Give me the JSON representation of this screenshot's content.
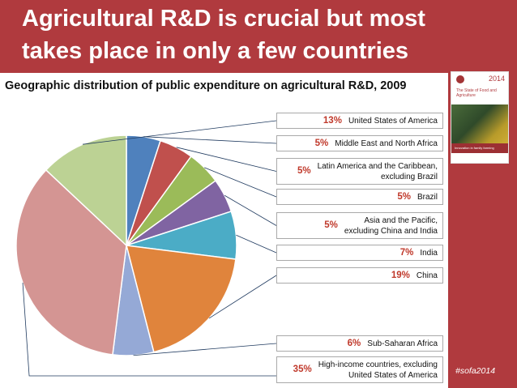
{
  "slide": {
    "title": "Agricultural R&D is crucial but most takes place in only a few countries",
    "subtitle": "Geographic distribution of public expenditure on agricultural R&D, 2009",
    "hashtag": "#sofa2014",
    "cover": {
      "year": "2014",
      "title": "The State of Food and Agriculture",
      "band": "Innovation in family farming"
    }
  },
  "colors": {
    "header_bg": "#b03a3e",
    "label_pct": "#c0392b"
  },
  "chart_data": {
    "type": "pie",
    "title": "Geographic distribution of public expenditure on agricultural R&D, 2009",
    "unit": "%",
    "slices": [
      {
        "pct": "5%",
        "value": 5,
        "name": "Middle East and North Africa",
        "color": "#4f81bd"
      },
      {
        "pct": "5%",
        "value": 5,
        "name": "Latin America and the Caribbean,\nexcluding Brazil",
        "color": "#c0504d"
      },
      {
        "pct": "5%",
        "value": 5,
        "name": "Brazil",
        "color": "#9bbb59"
      },
      {
        "pct": "5%",
        "value": 5,
        "name": "Asia and the Pacific,\nexcluding China and India",
        "color": "#8064a2"
      },
      {
        "pct": "7%",
        "value": 7,
        "name": "India",
        "color": "#4bacc6"
      },
      {
        "pct": "19%",
        "value": 19,
        "name": "China",
        "color": "#e0843c"
      },
      {
        "pct": "6%",
        "value": 6,
        "name": "Sub-Saharan Africa",
        "color": "#95a9d6"
      },
      {
        "pct": "35%",
        "value": 35,
        "name": "High-income countries, excluding\nUnited States of America",
        "color": "#d49593"
      },
      {
        "pct": "13%",
        "value": 13,
        "name": "United States of America",
        "color": "#bcd294"
      }
    ]
  }
}
